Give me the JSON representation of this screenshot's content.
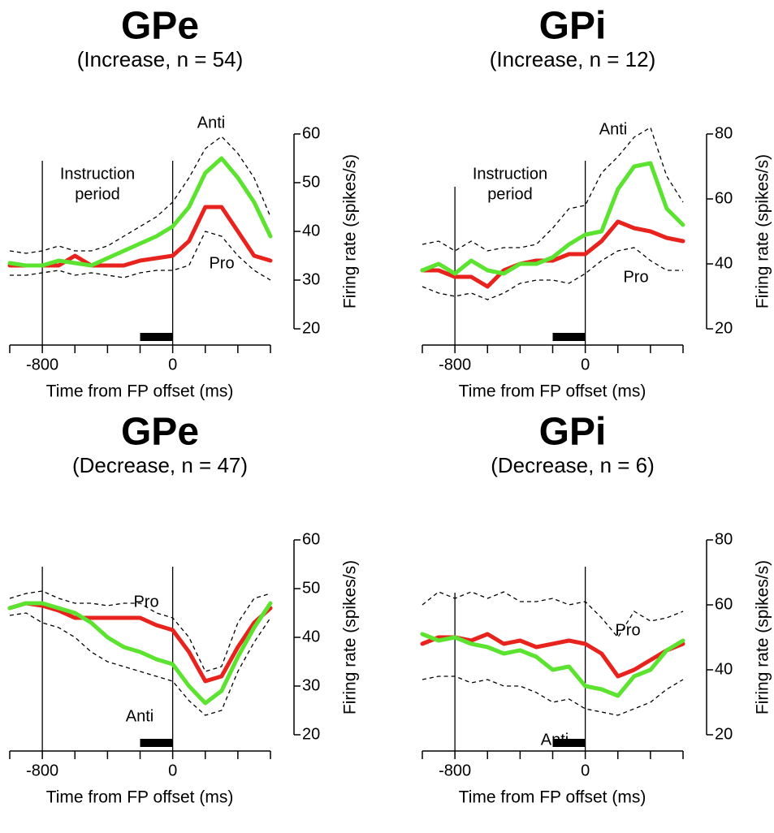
{
  "chart_data": [
    {
      "type": "line",
      "title": "GPe",
      "subtitle": "(Increase, n = 54)",
      "xlabel": "Time from FP offset (ms)",
      "ylabel": "Firing rate (spikes/s)",
      "x": [
        -1000,
        -900,
        -800,
        -700,
        -600,
        -500,
        -400,
        -300,
        -200,
        -100,
        0,
        100,
        200,
        300,
        400,
        500,
        600
      ],
      "xlim": [
        -1000,
        600
      ],
      "xticks": [
        -800,
        0
      ],
      "xminor_ticks": [
        -1000,
        -600,
        -400,
        -200,
        200,
        400,
        600
      ],
      "ylim": [
        20,
        60
      ],
      "yticks": [
        20,
        30,
        40,
        50,
        60
      ],
      "event_lines": [
        -800,
        0
      ],
      "period_bar": [
        -200,
        0
      ],
      "annotations": [
        "Instruction",
        "period"
      ],
      "series": [
        {
          "name": "Pro",
          "color": "#e8231d",
          "values": [
            33,
            33,
            33,
            33,
            35,
            33,
            33,
            33,
            34,
            34.5,
            35,
            38,
            45,
            45,
            40,
            35,
            34
          ]
        },
        {
          "name": "Anti",
          "color": "#5be32f",
          "values": [
            33.5,
            33,
            33,
            34,
            33.5,
            33,
            34.5,
            36,
            37.5,
            39,
            41,
            45,
            52,
            55,
            51,
            46,
            39
          ]
        }
      ],
      "bounds": [
        {
          "color": "#000",
          "dashed": true,
          "values": [
            36,
            35.5,
            36,
            37,
            36,
            36,
            37,
            39,
            41,
            43,
            46,
            51,
            57,
            59.5,
            56,
            51,
            43
          ]
        },
        {
          "color": "#000",
          "dashed": true,
          "values": [
            31,
            31,
            31.5,
            32,
            31,
            31.5,
            31,
            30.5,
            31.5,
            32,
            32,
            33,
            40,
            39,
            35,
            32,
            30
          ]
        }
      ]
    },
    {
      "type": "line",
      "title": "GPi",
      "subtitle": "(Increase, n = 12)",
      "xlabel": "Time from FP offset (ms)",
      "ylabel": "Firing rate (spikes/s)",
      "x": [
        -1000,
        -900,
        -800,
        -700,
        -600,
        -500,
        -400,
        -300,
        -200,
        -100,
        0,
        100,
        200,
        300,
        400,
        500,
        600
      ],
      "xlim": [
        -1000,
        600
      ],
      "xticks": [
        -800,
        0
      ],
      "xminor_ticks": [
        -1000,
        -600,
        -400,
        -200,
        200,
        400,
        600
      ],
      "ylim": [
        20,
        80
      ],
      "yticks": [
        20,
        40,
        60,
        80
      ],
      "event_lines": [
        -800,
        0
      ],
      "period_bar": [
        -200,
        0
      ],
      "annotations": [
        "Instruction",
        "period"
      ],
      "series": [
        {
          "name": "Pro",
          "color": "#e8231d",
          "values": [
            38,
            38,
            36,
            36,
            33,
            38,
            40,
            41,
            41,
            43,
            43,
            47,
            53,
            51,
            50,
            48,
            47
          ]
        },
        {
          "name": "Anti",
          "color": "#5be32f",
          "values": [
            38,
            40,
            37,
            41,
            38,
            37,
            40,
            40,
            42,
            46,
            49,
            50,
            63,
            70,
            71,
            57,
            52
          ]
        }
      ],
      "bounds": [
        {
          "color": "#000",
          "dashed": true,
          "values": [
            46,
            47,
            44,
            47,
            44,
            45,
            45,
            46,
            51,
            57,
            58,
            68,
            73,
            79,
            82,
            67,
            59
          ]
        },
        {
          "color": "#000",
          "dashed": true,
          "values": [
            33,
            31,
            30,
            31,
            29,
            31,
            34,
            35,
            35,
            34,
            37,
            41,
            44,
            45,
            41,
            38,
            38
          ]
        }
      ]
    },
    {
      "type": "line",
      "title": "GPe",
      "subtitle": "(Decrease, n = 47)",
      "xlabel": "Time from FP offset (ms)",
      "ylabel": "Firing rate (spikes/s)",
      "x": [
        -1000,
        -900,
        -800,
        -700,
        -600,
        -500,
        -400,
        -300,
        -200,
        -100,
        0,
        100,
        200,
        300,
        400,
        500,
        600
      ],
      "xlim": [
        -1000,
        600
      ],
      "xticks": [
        -800,
        0
      ],
      "xminor_ticks": [
        -1000,
        -600,
        -400,
        -200,
        200,
        400,
        600
      ],
      "ylim": [
        20,
        60
      ],
      "yticks": [
        20,
        30,
        40,
        50,
        60
      ],
      "event_lines": [
        -800,
        0
      ],
      "period_bar": [
        -200,
        0
      ],
      "series": [
        {
          "name": "Pro",
          "color": "#e8231d",
          "values": [
            46,
            47,
            46.5,
            45.5,
            44,
            44,
            44,
            44,
            44,
            42.5,
            41.5,
            37,
            31,
            32,
            38,
            43,
            46
          ]
        },
        {
          "name": "Anti",
          "color": "#5be32f",
          "values": [
            46,
            47,
            47,
            46,
            45,
            43,
            40,
            38,
            37,
            35.5,
            34.5,
            30,
            26.5,
            29,
            36,
            42,
            47
          ]
        }
      ],
      "bounds": [
        {
          "color": "#000",
          "dashed": true,
          "values": [
            48,
            49,
            49.5,
            48,
            47,
            47,
            46.5,
            47,
            47,
            45,
            44,
            40,
            33,
            34,
            43,
            48,
            49
          ]
        },
        {
          "color": "#000",
          "dashed": true,
          "values": [
            44.5,
            45,
            43,
            42,
            40,
            37,
            35,
            34,
            33,
            32,
            31,
            27,
            24,
            25,
            33,
            39,
            44
          ]
        }
      ]
    },
    {
      "type": "line",
      "title": "GPi",
      "subtitle": "(Decrease, n = 6)",
      "xlabel": "Time from FP offset (ms)",
      "ylabel": "Firing rate (spikes/s)",
      "x": [
        -1000,
        -900,
        -800,
        -700,
        -600,
        -500,
        -400,
        -300,
        -200,
        -100,
        0,
        100,
        200,
        300,
        400,
        500,
        600
      ],
      "xlim": [
        -1000,
        600
      ],
      "xticks": [
        -800,
        0
      ],
      "xminor_ticks": [
        -1000,
        -600,
        -400,
        -200,
        200,
        400,
        600
      ],
      "ylim": [
        20,
        80
      ],
      "yticks": [
        20,
        40,
        60,
        80
      ],
      "event_lines": [
        -800,
        0
      ],
      "period_bar": [
        -200,
        0
      ],
      "series": [
        {
          "name": "Pro",
          "color": "#e8231d",
          "values": [
            48,
            50,
            50,
            49,
            51,
            48,
            49,
            47,
            48,
            49,
            48,
            45,
            38,
            40,
            43,
            46,
            48
          ]
        },
        {
          "name": "Anti",
          "color": "#5be32f",
          "values": [
            51,
            49,
            50,
            48,
            47,
            45,
            46,
            44,
            40,
            41,
            35,
            34,
            32,
            38,
            40,
            46,
            49
          ]
        }
      ],
      "bounds": [
        {
          "color": "#000",
          "dashed": true,
          "values": [
            60,
            64,
            62,
            64,
            62,
            64,
            61,
            61,
            62,
            60,
            61,
            56,
            50,
            58,
            55,
            56,
            58
          ]
        },
        {
          "color": "#000",
          "dashed": true,
          "values": [
            37,
            38,
            38,
            36,
            37,
            35,
            35,
            33,
            30,
            31,
            28,
            27,
            26,
            28,
            30,
            34,
            37
          ]
        }
      ]
    }
  ]
}
